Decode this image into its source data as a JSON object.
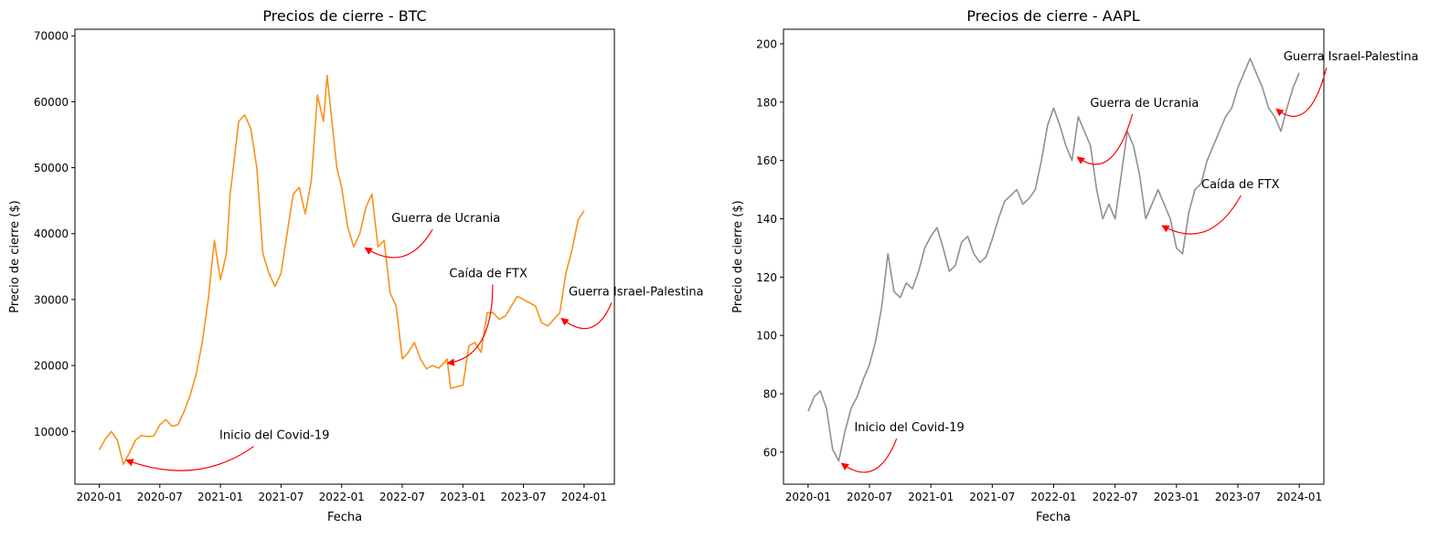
{
  "chart_data": [
    {
      "type": "line",
      "title": "Precios de cierre - BTC",
      "xlabel": "Fecha",
      "ylabel": "Precio de cierre ($)",
      "xlim": [
        2019.8,
        2024.25
      ],
      "ylim": [
        2000,
        71000
      ],
      "x_ticks": [
        2020.0,
        2020.5,
        2021.0,
        2021.5,
        2022.0,
        2022.5,
        2023.0,
        2023.5,
        2024.0
      ],
      "x_tick_labels": [
        "2020-01",
        "2020-07",
        "2021-01",
        "2021-07",
        "2022-01",
        "2022-07",
        "2023-01",
        "2023-07",
        "2024-01"
      ],
      "y_ticks": [
        10000,
        20000,
        30000,
        40000,
        50000,
        60000,
        70000
      ],
      "y_tick_labels": [
        "10000",
        "20000",
        "30000",
        "40000",
        "50000",
        "60000",
        "70000"
      ],
      "line_color": "#f7931a",
      "series": [
        {
          "name": "BTC",
          "x": [
            2020.0,
            2020.05,
            2020.1,
            2020.15,
            2020.2,
            2020.25,
            2020.3,
            2020.35,
            2020.4,
            2020.45,
            2020.5,
            2020.55,
            2020.6,
            2020.65,
            2020.7,
            2020.75,
            2020.8,
            2020.85,
            2020.9,
            2020.95,
            2021.0,
            2021.05,
            2021.08,
            2021.1,
            2021.15,
            2021.2,
            2021.25,
            2021.3,
            2021.35,
            2021.4,
            2021.45,
            2021.5,
            2021.55,
            2021.6,
            2021.65,
            2021.7,
            2021.75,
            2021.8,
            2021.85,
            2021.88,
            2021.92,
            2021.96,
            2022.0,
            2022.05,
            2022.1,
            2022.15,
            2022.2,
            2022.25,
            2022.3,
            2022.35,
            2022.4,
            2022.45,
            2022.5,
            2022.55,
            2022.6,
            2022.65,
            2022.7,
            2022.75,
            2022.8,
            2022.85,
            2022.87,
            2022.9,
            2022.95,
            2023.0,
            2023.05,
            2023.1,
            2023.15,
            2023.2,
            2023.25,
            2023.3,
            2023.35,
            2023.4,
            2023.45,
            2023.5,
            2023.55,
            2023.6,
            2023.65,
            2023.7,
            2023.75,
            2023.8,
            2023.85,
            2023.9,
            2023.95,
            2024.0
          ],
          "values": [
            7200,
            8800,
            10000,
            8700,
            5000,
            6800,
            8700,
            9400,
            9200,
            9300,
            11000,
            11800,
            10800,
            11000,
            13000,
            15500,
            18700,
            23500,
            30000,
            39000,
            33000,
            37000,
            46000,
            49000,
            57000,
            58000,
            56000,
            50000,
            37000,
            34000,
            32000,
            34000,
            40000,
            46000,
            47000,
            43000,
            48000,
            61000,
            57000,
            64000,
            57000,
            50000,
            47000,
            41000,
            38000,
            40000,
            44000,
            46000,
            38000,
            39000,
            31000,
            29000,
            21000,
            22000,
            23500,
            21000,
            19500,
            20000,
            19600,
            20500,
            21000,
            16500,
            16800,
            17000,
            23000,
            23500,
            22000,
            28000,
            28000,
            27000,
            27500,
            29000,
            30500,
            30000,
            29500,
            29000,
            26500,
            26000,
            27000,
            28000,
            34000,
            37500,
            42000,
            43500
          ]
        }
      ],
      "annotations": [
        {
          "text": "Inicio del Covid-19",
          "x": 2020.2,
          "y": 5800
        },
        {
          "text": "Guerra de Ucrania",
          "x": 2022.17,
          "y": 38000
        },
        {
          "text": "Caída de FTX",
          "x": 2022.85,
          "y": 20500
        },
        {
          "text": "Guerra Israel-Palestina",
          "x": 2023.79,
          "y": 27300
        }
      ]
    },
    {
      "type": "line",
      "title": "Precios de cierre - AAPL",
      "xlabel": "Fecha",
      "ylabel": "Precio de cierre ($)",
      "xlim": [
        2019.8,
        2024.2
      ],
      "ylim": [
        49,
        205
      ],
      "x_ticks": [
        2020.0,
        2020.5,
        2021.0,
        2021.5,
        2022.0,
        2022.5,
        2023.0,
        2023.5,
        2024.0
      ],
      "x_tick_labels": [
        "2020-01",
        "2020-07",
        "2021-01",
        "2021-07",
        "2022-01",
        "2022-07",
        "2023-01",
        "2023-07",
        "2024-01"
      ],
      "y_ticks": [
        60,
        80,
        100,
        120,
        140,
        160,
        180,
        200
      ],
      "y_tick_labels": [
        "60",
        "80",
        "100",
        "120",
        "140",
        "160",
        "180",
        "200"
      ],
      "line_color": "#909090",
      "series": [
        {
          "name": "AAPL",
          "x": [
            2020.0,
            2020.05,
            2020.1,
            2020.15,
            2020.2,
            2020.25,
            2020.3,
            2020.35,
            2020.4,
            2020.45,
            2020.5,
            2020.55,
            2020.6,
            2020.65,
            2020.7,
            2020.75,
            2020.8,
            2020.85,
            2020.9,
            2020.95,
            2021.0,
            2021.05,
            2021.1,
            2021.15,
            2021.2,
            2021.25,
            2021.3,
            2021.35,
            2021.4,
            2021.45,
            2021.5,
            2021.55,
            2021.6,
            2021.65,
            2021.7,
            2021.75,
            2021.8,
            2021.85,
            2021.9,
            2021.95,
            2022.0,
            2022.05,
            2022.1,
            2022.15,
            2022.2,
            2022.25,
            2022.3,
            2022.35,
            2022.4,
            2022.45,
            2022.5,
            2022.55,
            2022.6,
            2022.65,
            2022.7,
            2022.75,
            2022.8,
            2022.85,
            2022.9,
            2022.95,
            2023.0,
            2023.05,
            2023.1,
            2023.15,
            2023.2,
            2023.25,
            2023.3,
            2023.35,
            2023.4,
            2023.45,
            2023.5,
            2023.55,
            2023.6,
            2023.65,
            2023.7,
            2023.75,
            2023.8,
            2023.85,
            2023.9,
            2023.95,
            2024.0
          ],
          "values": [
            74,
            79,
            81,
            75,
            61,
            57,
            67,
            75,
            79,
            85,
            90,
            98,
            110,
            128,
            115,
            113,
            118,
            116,
            122,
            130,
            134,
            137,
            130,
            122,
            124,
            132,
            134,
            128,
            125,
            127,
            133,
            140,
            146,
            148,
            150,
            145,
            147,
            150,
            160,
            172,
            178,
            172,
            165,
            160,
            175,
            170,
            165,
            150,
            140,
            145,
            140,
            155,
            170,
            165,
            155,
            140,
            145,
            150,
            145,
            140,
            130,
            128,
            142,
            150,
            152,
            160,
            165,
            170,
            175,
            178,
            185,
            190,
            195,
            190,
            185,
            178,
            175,
            170,
            178,
            185,
            190
          ]
        }
      ],
      "annotations": [
        {
          "text": "Inicio del Covid-19",
          "x": 2020.25,
          "y": 56.5
        },
        {
          "text": "Guerra de Ucrania",
          "x": 2022.17,
          "y": 161.5
        },
        {
          "text": "Caída de FTX",
          "x": 2022.86,
          "y": 138
        },
        {
          "text": "Guerra Israel-Palestina",
          "x": 2023.79,
          "y": 178
        }
      ]
    }
  ]
}
